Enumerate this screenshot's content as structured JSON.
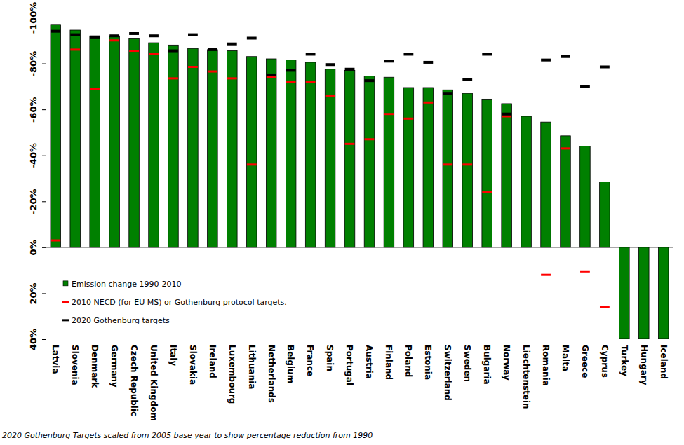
{
  "chart_data": {
    "type": "bar",
    "categories": [
      "Latvia",
      "Slovenia",
      "Denmark",
      "Germany",
      "Czech Republic",
      "United Kingdom",
      "Italy",
      "Slovakia",
      "Ireland",
      "Luxembourg",
      "Lithuania",
      "Netherlands",
      "Belgium",
      "France",
      "Spain",
      "Portugal",
      "Austria",
      "Finland",
      "Poland",
      "Estonia",
      "Switzerland",
      "Sweden",
      "Bulgaria",
      "Norway",
      "Liechtenstein",
      "Romania",
      "Malta",
      "Greece",
      "Cyprus",
      "Turkey",
      "Hungary",
      "Iceland"
    ],
    "series": [
      {
        "name": "Emission change 1990-2010",
        "type": "bar",
        "color": "#008000",
        "values": [
          -97,
          -94.5,
          -92,
          -92,
          -91,
          -89,
          -88,
          -86.5,
          -86,
          -85.5,
          -83,
          -82,
          -81.5,
          -80.5,
          -77.5,
          -77,
          -74.5,
          -74,
          -69.5,
          -69.5,
          -68.5,
          -67,
          -64.5,
          -62.5,
          -57,
          -54.5,
          -48.5,
          -44,
          -28.5,
          40,
          40,
          40
        ]
      },
      {
        "name": "2010 NECD (for EU MS) or Gothenburg protocol targets.",
        "type": "scatter",
        "marker": "dash",
        "color": "#ff0000",
        "values": [
          -3,
          -86,
          -69,
          -90,
          -85.5,
          -84,
          -73.5,
          -78.5,
          -76.5,
          -73.5,
          -36,
          -74,
          -72,
          -72,
          -66,
          -45,
          -47,
          -58,
          -56,
          -63,
          -36,
          -36,
          -24,
          -57,
          null,
          12,
          -43,
          10.5,
          26,
          null,
          null,
          null
        ]
      },
      {
        "name": "2020 Gothenburg targets",
        "type": "scatter",
        "marker": "dash",
        "color": "#000000",
        "values": [
          -94,
          -92.5,
          -91.5,
          -92,
          -93,
          -92,
          -85.5,
          -92.5,
          -86,
          -88.5,
          -91,
          -75,
          -77,
          -84,
          -79.5,
          -77.5,
          -72.5,
          -81,
          -84,
          -80.5,
          -67,
          -73,
          -84,
          -58,
          null,
          -81.5,
          -83,
          -70,
          -78.5,
          null,
          null,
          null
        ]
      }
    ],
    "ylim": [
      -100,
      40
    ],
    "yticks": [
      {
        "value": -100,
        "label": "-100%"
      },
      {
        "value": -80,
        "label": "-80%"
      },
      {
        "value": -60,
        "label": "-60%"
      },
      {
        "value": -40,
        "label": "-40%"
      },
      {
        "value": -20,
        "label": "-20%"
      },
      {
        "value": 0,
        "label": "0%"
      },
      {
        "value": 20,
        "label": "20%"
      },
      {
        "value": 40,
        "label": "40%"
      }
    ],
    "grid": false,
    "legend": "lower left",
    "annotations": [
      "2020 Gothenburg Targets scaled  from 2005 base year to show  percentage reduction from 1990"
    ]
  }
}
